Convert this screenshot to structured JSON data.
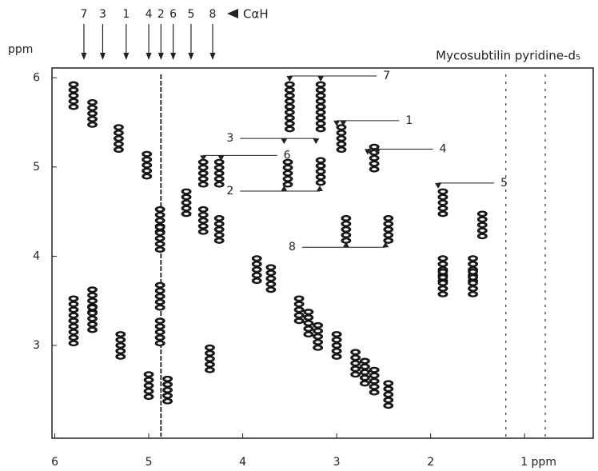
{
  "chart_data": {
    "type": "contour",
    "title": "Mycosubtilin pyridine-d₅",
    "ylabel": "ppm",
    "marker_label": "CαH",
    "xlim": [
      6.03,
      0.27
    ],
    "ylim": [
      1.96,
      6.11
    ],
    "xticks": [
      6,
      5,
      4,
      3,
      2,
      {
        "value": 1,
        "label": "1 ppm"
      }
    ],
    "yticks": [
      3,
      4,
      5,
      6
    ],
    "calpha_markers": [
      {
        "label": "7",
        "x": 5.69
      },
      {
        "label": "3",
        "x": 5.49
      },
      {
        "label": "1",
        "x": 5.24
      },
      {
        "label": "4",
        "x": 5.0
      },
      {
        "label": "2",
        "x": 4.87
      },
      {
        "label": "6",
        "x": 4.74
      },
      {
        "label": "5",
        "x": 4.55
      },
      {
        "label": "8",
        "x": 4.32
      }
    ],
    "annotations": [
      {
        "label": "7",
        "y": 6.02,
        "x": [
          3.5,
          3.17
        ],
        "side": "right"
      },
      {
        "label": "1",
        "y": 5.52,
        "x": [
          3.0,
          2.93
        ],
        "side": "right"
      },
      {
        "label": "3",
        "y": 5.32,
        "x": [
          3.56,
          3.22
        ],
        "side": "left"
      },
      {
        "label": "6",
        "y": 5.13,
        "x": [
          4.42,
          4.23
        ],
        "side": "right"
      },
      {
        "label": "4",
        "y": 5.2,
        "x": [
          2.67,
          2.57
        ],
        "side": "right"
      },
      {
        "label": "2",
        "y": 4.73,
        "x": [
          3.56,
          3.18
        ],
        "side": "left"
      },
      {
        "label": "5",
        "y": 4.82,
        "x": [
          1.92
        ],
        "side": "right"
      },
      {
        "label": "8",
        "y": 4.1,
        "x": [
          2.9,
          2.48
        ],
        "side": "left"
      }
    ],
    "streaks_x": [
      4.87,
      0.78,
      1.2
    ],
    "peaks": [
      {
        "x": 5.8,
        "y": 5.8
      },
      {
        "x": 5.6,
        "y": 5.6
      },
      {
        "x": 5.32,
        "y": 5.32
      },
      {
        "x": 5.02,
        "y": 5.02
      },
      {
        "x": 4.6,
        "y": 4.6
      },
      {
        "x": 4.42,
        "y": 4.4
      },
      {
        "x": 4.25,
        "y": 4.3
      },
      {
        "x": 3.85,
        "y": 3.85
      },
      {
        "x": 3.7,
        "y": 3.75
      },
      {
        "x": 3.4,
        "y": 3.4
      },
      {
        "x": 3.3,
        "y": 3.25
      },
      {
        "x": 3.2,
        "y": 3.1
      },
      {
        "x": 3.0,
        "y": 3.0
      },
      {
        "x": 2.8,
        "y": 2.8
      },
      {
        "x": 2.7,
        "y": 2.7
      },
      {
        "x": 2.6,
        "y": 2.6
      },
      {
        "x": 2.45,
        "y": 2.45
      },
      {
        "x": 5.8,
        "y": 3.4
      },
      {
        "x": 5.8,
        "y": 3.15
      },
      {
        "x": 5.6,
        "y": 3.5
      },
      {
        "x": 5.6,
        "y": 3.3
      },
      {
        "x": 5.3,
        "y": 3.0
      },
      {
        "x": 4.88,
        "y": 3.55
      },
      {
        "x": 4.88,
        "y": 3.15
      },
      {
        "x": 5.0,
        "y": 2.55
      },
      {
        "x": 4.8,
        "y": 2.5
      },
      {
        "x": 4.35,
        "y": 2.85
      },
      {
        "x": 4.42,
        "y": 4.93
      },
      {
        "x": 4.25,
        "y": 4.93
      },
      {
        "x": 4.88,
        "y": 4.4
      },
      {
        "x": 4.88,
        "y": 4.2
      },
      {
        "x": 3.5,
        "y": 5.8
      },
      {
        "x": 3.5,
        "y": 5.55
      },
      {
        "x": 3.17,
        "y": 5.8
      },
      {
        "x": 3.17,
        "y": 5.55
      },
      {
        "x": 2.95,
        "y": 5.32
      },
      {
        "x": 3.52,
        "y": 4.93
      },
      {
        "x": 3.17,
        "y": 4.95
      },
      {
        "x": 2.6,
        "y": 5.1
      },
      {
        "x": 2.9,
        "y": 4.3
      },
      {
        "x": 2.45,
        "y": 4.3
      },
      {
        "x": 1.87,
        "y": 4.6
      },
      {
        "x": 1.87,
        "y": 3.85
      },
      {
        "x": 1.87,
        "y": 3.7
      },
      {
        "x": 1.55,
        "y": 3.85
      },
      {
        "x": 1.55,
        "y": 3.7
      },
      {
        "x": 1.45,
        "y": 4.35
      }
    ]
  }
}
